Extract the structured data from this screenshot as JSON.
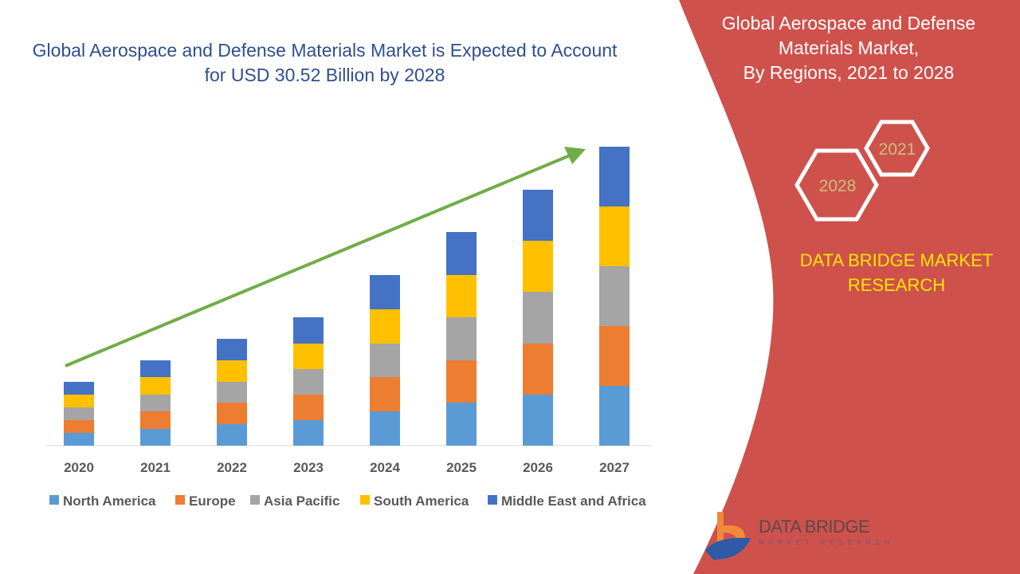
{
  "title": "Global Aerospace and Defense Materials Market is Expected to Account for USD 30.52 Billion by 2028",
  "side_panel": {
    "title_lines": [
      "Global Aerospace and Defense",
      "Materials Market,",
      "By Regions, 2021 to 2028"
    ],
    "hex_labels": [
      "2021",
      "2028"
    ],
    "brand_lines": [
      "DATA BRIDGE MARKET",
      "RESEARCH"
    ],
    "logo": {
      "name": "DATA BRIDGE",
      "tagline": "MARKET RESEARCH"
    }
  },
  "colors": {
    "panel": "#cf514c",
    "arrow": "#70ad47",
    "title": "#2f4f8f",
    "brand": "#ffe600"
  },
  "chart_data": {
    "type": "bar",
    "stacked": true,
    "title": "Global Aerospace and Defense Materials Market is Expected to Account for USD 30.52 Billion by 2028",
    "categories": [
      "2020",
      "2021",
      "2022",
      "2023",
      "2024",
      "2025",
      "2026",
      "2027"
    ],
    "series": [
      {
        "name": "North America",
        "color": "#5b9bd5",
        "values": [
          16,
          21,
          27,
          32,
          43,
          54,
          64,
          75
        ]
      },
      {
        "name": "Europe",
        "color": "#ed7d31",
        "values": [
          16,
          22,
          27,
          32,
          43,
          53,
          64,
          75
        ]
      },
      {
        "name": "Asia Pacific",
        "color": "#a5a5a5",
        "values": [
          16,
          21,
          26,
          32,
          42,
          54,
          65,
          75
        ]
      },
      {
        "name": "South America",
        "color": "#ffc000",
        "values": [
          16,
          22,
          27,
          32,
          43,
          53,
          64,
          75
        ]
      },
      {
        "name": "Middle East and Africa",
        "color": "#4472c4",
        "values": [
          16,
          21,
          27,
          33,
          43,
          54,
          64,
          75
        ]
      }
    ],
    "ylim": [
      0,
      380
    ],
    "y_axis_visible": false,
    "grid": false,
    "legend": "bottom",
    "annotation": "upward trend arrow"
  }
}
